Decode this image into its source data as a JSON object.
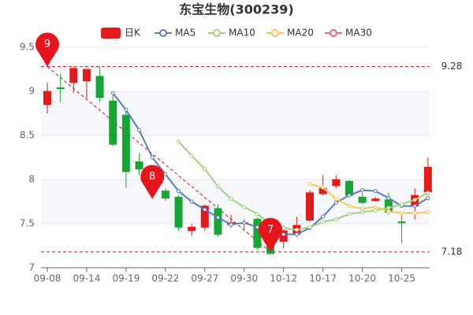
{
  "chart_data": {
    "type": "candlestick",
    "title": "东宝生物(300239)",
    "categories": [
      "09-08",
      null,
      null,
      "09-14",
      null,
      null,
      "09-19",
      null,
      null,
      "09-22",
      null,
      null,
      "09-27",
      null,
      null,
      "09-30",
      null,
      null,
      "10-12",
      null,
      null,
      "10-17",
      null,
      null,
      "10-20",
      null,
      null,
      "10-25",
      null,
      null
    ],
    "series": [
      {
        "name": "日K",
        "up_color": "#e41b1b",
        "down_color": "#17a534",
        "open": [
          8.85,
          9.04,
          9.1,
          9.12,
          9.17,
          8.89,
          8.73,
          8.2,
          8.09,
          7.87,
          7.8,
          7.42,
          7.46,
          7.67,
          7.49,
          7.5,
          7.55,
          7.29,
          7.3,
          7.38,
          7.54,
          7.84,
          7.93,
          7.98,
          7.8,
          7.76,
          7.77,
          7.52,
          7.7,
          7.86
        ],
        "close": [
          9.0,
          9.03,
          9.26,
          9.25,
          8.93,
          8.4,
          8.09,
          8.12,
          7.92,
          7.79,
          7.46,
          7.46,
          7.7,
          7.38,
          7.51,
          7.51,
          7.23,
          7.16,
          7.42,
          7.48,
          7.85,
          7.9,
          8.0,
          7.82,
          7.74,
          7.78,
          7.63,
          7.51,
          7.82,
          8.14
        ],
        "high": [
          9.1,
          9.2,
          9.28,
          9.25,
          9.28,
          9.0,
          8.78,
          8.3,
          8.12,
          7.9,
          7.82,
          7.5,
          7.72,
          7.72,
          7.6,
          7.55,
          7.57,
          7.3,
          7.48,
          7.58,
          7.88,
          8.05,
          8.05,
          8.0,
          7.85,
          7.8,
          7.85,
          7.6,
          7.9,
          8.25
        ],
        "low": [
          8.75,
          8.88,
          8.98,
          8.92,
          8.88,
          8.38,
          7.91,
          8.05,
          7.78,
          7.76,
          7.42,
          7.36,
          7.42,
          7.35,
          7.45,
          7.44,
          7.2,
          7.18,
          7.22,
          7.35,
          7.52,
          7.82,
          7.9,
          7.8,
          7.72,
          7.75,
          7.6,
          7.28,
          7.55,
          7.82
        ]
      },
      {
        "name": "MA5",
        "color": "#5b7bc0",
        "values": [
          null,
          null,
          null,
          null,
          null,
          8.98,
          8.79,
          8.56,
          8.25,
          8.06,
          7.87,
          7.75,
          7.66,
          7.57,
          7.49,
          7.51,
          7.46,
          7.38,
          7.38,
          7.38,
          7.45,
          7.58,
          7.74,
          7.82,
          7.88,
          7.87,
          7.79,
          7.7,
          7.7,
          7.79
        ]
      },
      {
        "name": "MA10",
        "color": "#9fd37c",
        "values": [
          null,
          null,
          null,
          null,
          null,
          null,
          null,
          null,
          null,
          null,
          8.43,
          8.27,
          8.12,
          7.92,
          7.78,
          7.69,
          7.61,
          7.5,
          7.45,
          7.43,
          7.46,
          7.52,
          7.55,
          7.61,
          7.63,
          7.65,
          7.68,
          7.72,
          7.77,
          7.85
        ]
      },
      {
        "name": "MA20",
        "color": "#f7c859",
        "values": [
          null,
          null,
          null,
          null,
          null,
          null,
          null,
          null,
          null,
          null,
          null,
          null,
          null,
          null,
          null,
          null,
          null,
          null,
          null,
          null,
          7.95,
          7.91,
          7.78,
          7.7,
          7.67,
          7.69,
          7.64,
          7.62,
          7.62,
          7.63
        ]
      },
      {
        "name": "MA30",
        "color": "#ec6b6b",
        "values": [
          null,
          null,
          null,
          null,
          null,
          null,
          null,
          null,
          null,
          null,
          null,
          null,
          null,
          null,
          null,
          null,
          null,
          null,
          null,
          null,
          null,
          null,
          null,
          null,
          null,
          null,
          null,
          null,
          null,
          null
        ]
      }
    ],
    "ylim": [
      7,
      9.5
    ],
    "yticks": [
      7,
      7.5,
      8,
      8.5,
      9,
      9.5
    ],
    "grid": true,
    "reference_lines": [
      {
        "value": 9.28,
        "color": "#c8141c"
      },
      {
        "value": 7.18,
        "color": "#c8141c"
      }
    ],
    "annotations": [
      {
        "text": "9",
        "index": 0,
        "anchor": "high"
      },
      {
        "text": "8",
        "index": 8,
        "anchor": "low"
      },
      {
        "text": "7",
        "index": 17,
        "anchor": "low"
      }
    ]
  }
}
